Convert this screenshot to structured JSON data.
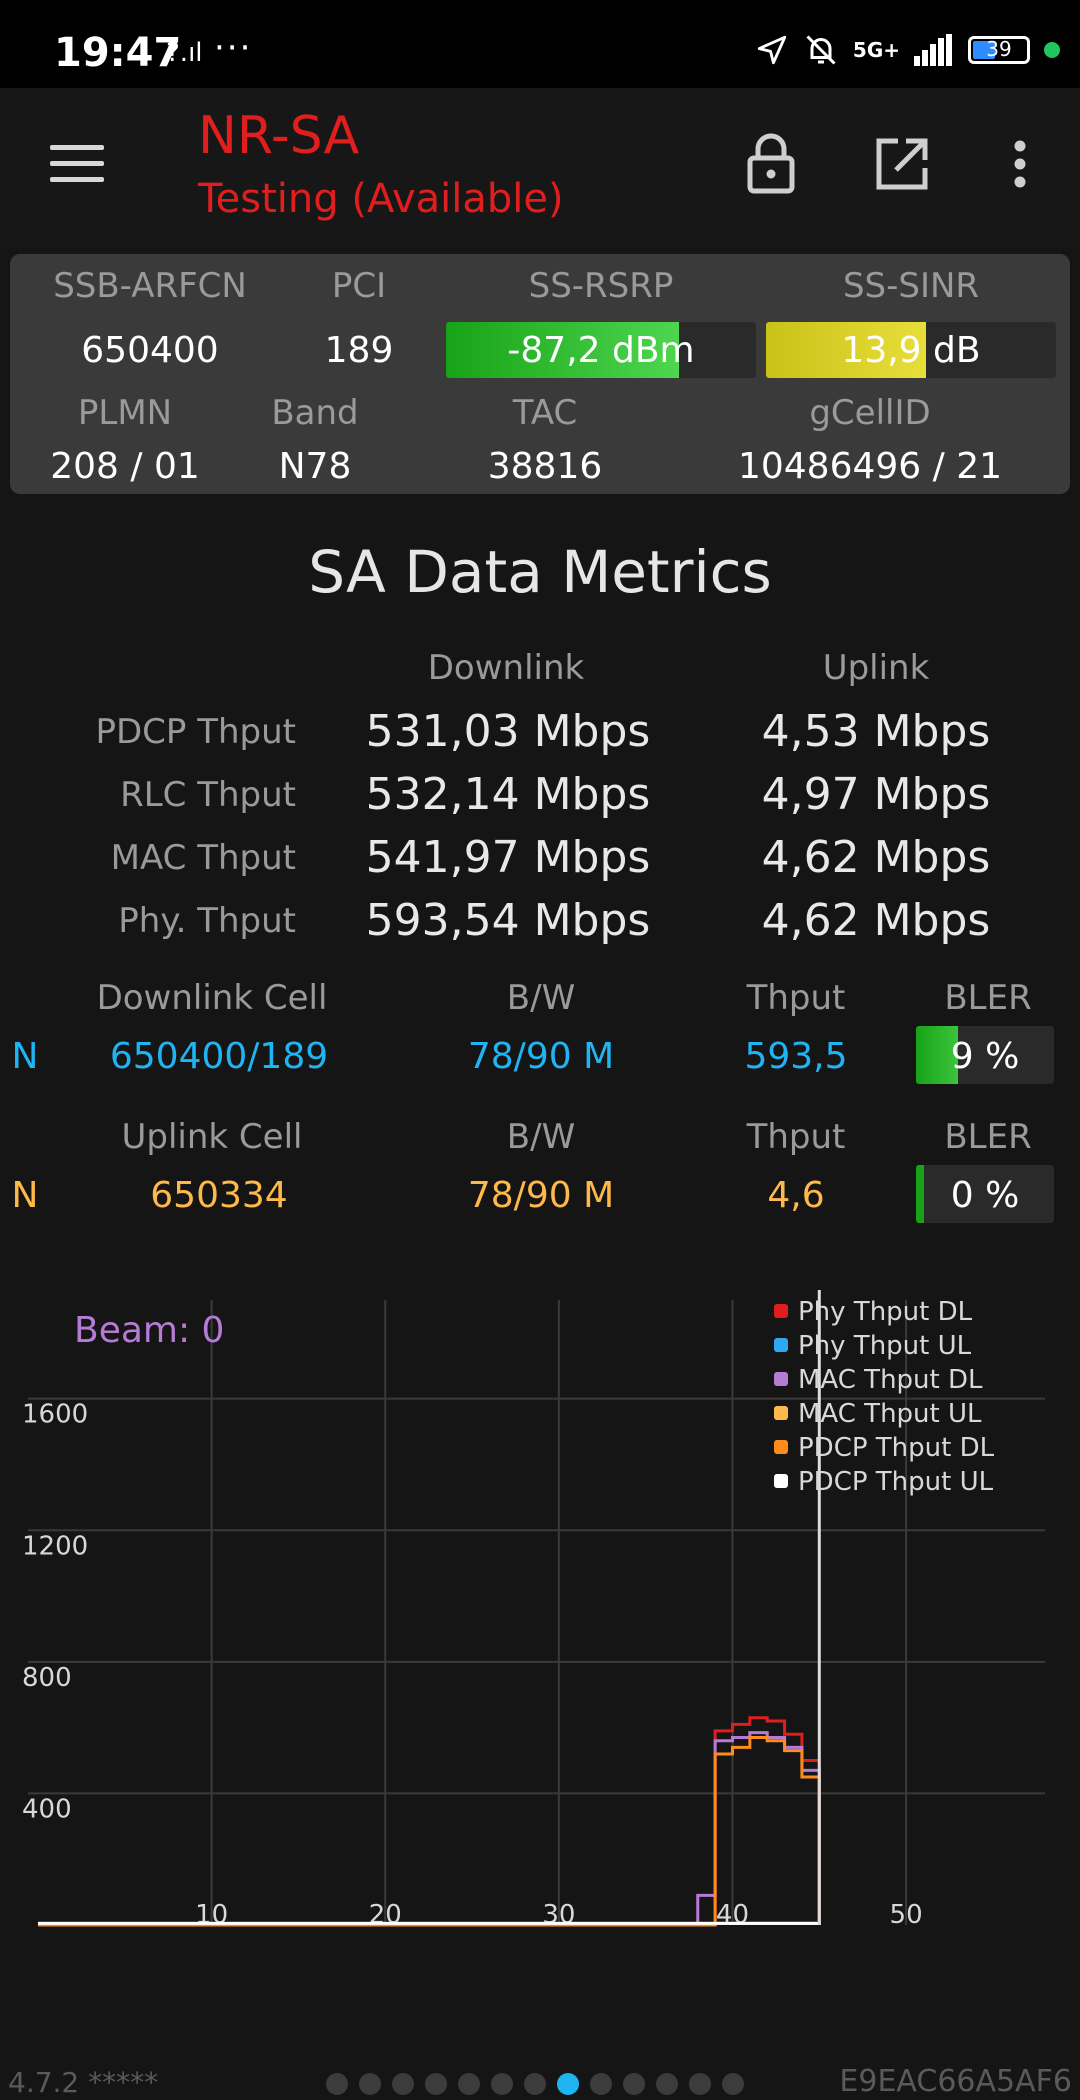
{
  "status_bar": {
    "time": "19:47",
    "signal_small": "?.ıl",
    "dots": "···",
    "network": "5G+",
    "battery": "39"
  },
  "app": {
    "title": "NR-SA",
    "subtitle": "Testing (Available)",
    "accent_color": "#e01e1e"
  },
  "serving": {
    "headers1": [
      "SSB-ARFCN",
      "PCI",
      "SS-RSRP",
      "SS-SINR"
    ],
    "arfcn": "650400",
    "pci": "189",
    "rsrp": {
      "text": "-87,2 dBm",
      "level": 0.75
    },
    "sinr": {
      "text": "13,9 dB",
      "level": 0.55
    },
    "headers2": [
      "PLMN",
      "Band",
      "TAC",
      "gCellID"
    ],
    "plmn": "208 / 01",
    "band": "N78",
    "tac": "38816",
    "gcellid": "10486496 / 21"
  },
  "metrics": {
    "title": "SA Data Metrics",
    "col_downlink": "Downlink",
    "col_uplink": "Uplink",
    "rows": [
      {
        "label": "PDCP Thput",
        "dl": "531,03 Mbps",
        "ul": "4,53 Mbps"
      },
      {
        "label": "RLC Thput",
        "dl": "532,14 Mbps",
        "ul": "4,97 Mbps"
      },
      {
        "label": "MAC Thput",
        "dl": "541,97 Mbps",
        "ul": "4,62 Mbps"
      },
      {
        "label": "Phy. Thput",
        "dl": "593,54 Mbps",
        "ul": "4,62 Mbps"
      }
    ]
  },
  "cells": {
    "dl_headers": [
      "Downlink Cell",
      "B/W",
      "Thput",
      "BLER"
    ],
    "dl": {
      "type": "N",
      "cell": "650400/189",
      "bw": "78/90 M",
      "thput": "593,5",
      "bler": "9 %",
      "bler_level": 0.09
    },
    "ul_headers": [
      "Uplink Cell",
      "B/W",
      "Thput",
      "BLER"
    ],
    "ul": {
      "type": "N",
      "cell": "650334",
      "bw": "78/90 M",
      "thput": "4,6",
      "bler": "0 %",
      "bler_level": 0.0
    }
  },
  "chart_data": {
    "type": "line",
    "title": "",
    "annotation": "Beam: 0",
    "xlabel": "",
    "ylabel": "",
    "xlim": [
      0,
      58
    ],
    "ylim": [
      0,
      1900
    ],
    "x_ticks": [
      10,
      20,
      30,
      40,
      50
    ],
    "y_ticks": [
      400,
      800,
      1200,
      1600
    ],
    "grid": true,
    "legend_position": "top-right",
    "cursor_x": 45,
    "series": [
      {
        "name": "Phy Thput DL",
        "color": "#e01e1e",
        "x": [
          0,
          10,
          20,
          30,
          37,
          38,
          39,
          40,
          41,
          42,
          43,
          44,
          45
        ],
        "y": [
          0,
          0,
          0,
          0,
          0,
          0,
          590,
          610,
          630,
          620,
          580,
          500,
          0
        ]
      },
      {
        "name": "Phy Thput UL",
        "color": "#2ea8f2",
        "x": [
          0,
          10,
          20,
          30,
          37,
          38,
          39,
          40,
          41,
          42,
          43,
          44,
          45
        ],
        "y": [
          0,
          0,
          0,
          0,
          0,
          0,
          5,
          5,
          5,
          5,
          5,
          5,
          0
        ]
      },
      {
        "name": "MAC Thput DL",
        "color": "#b57bd6",
        "x": [
          0,
          10,
          20,
          30,
          37,
          38,
          39,
          40,
          41,
          42,
          43,
          44,
          45
        ],
        "y": [
          0,
          0,
          0,
          0,
          0,
          90,
          560,
          570,
          585,
          570,
          540,
          470,
          0
        ]
      },
      {
        "name": "MAC Thput UL",
        "color": "#ffb84a",
        "x": [
          0,
          10,
          20,
          30,
          37,
          38,
          39,
          40,
          41,
          42,
          43,
          44,
          45
        ],
        "y": [
          5,
          5,
          5,
          5,
          5,
          5,
          5,
          5,
          5,
          5,
          5,
          5,
          0
        ]
      },
      {
        "name": "PDCP Thput DL",
        "color": "#ff8c1a",
        "x": [
          0,
          10,
          20,
          30,
          37,
          38,
          39,
          40,
          41,
          42,
          43,
          44,
          45
        ],
        "y": [
          0,
          0,
          0,
          0,
          0,
          0,
          520,
          540,
          570,
          560,
          530,
          450,
          0
        ]
      },
      {
        "name": "PDCP Thput UL",
        "color": "#ffffff",
        "x": [
          0,
          10,
          20,
          30,
          37,
          38,
          39,
          40,
          41,
          42,
          43,
          44,
          45
        ],
        "y": [
          5,
          5,
          5,
          5,
          5,
          5,
          5,
          5,
          5,
          5,
          5,
          5,
          0
        ]
      }
    ]
  },
  "footer": {
    "version": "4.7.2 *****",
    "page_count": 13,
    "active_page": 7,
    "device_id": "E9EAC66A5AF6"
  }
}
